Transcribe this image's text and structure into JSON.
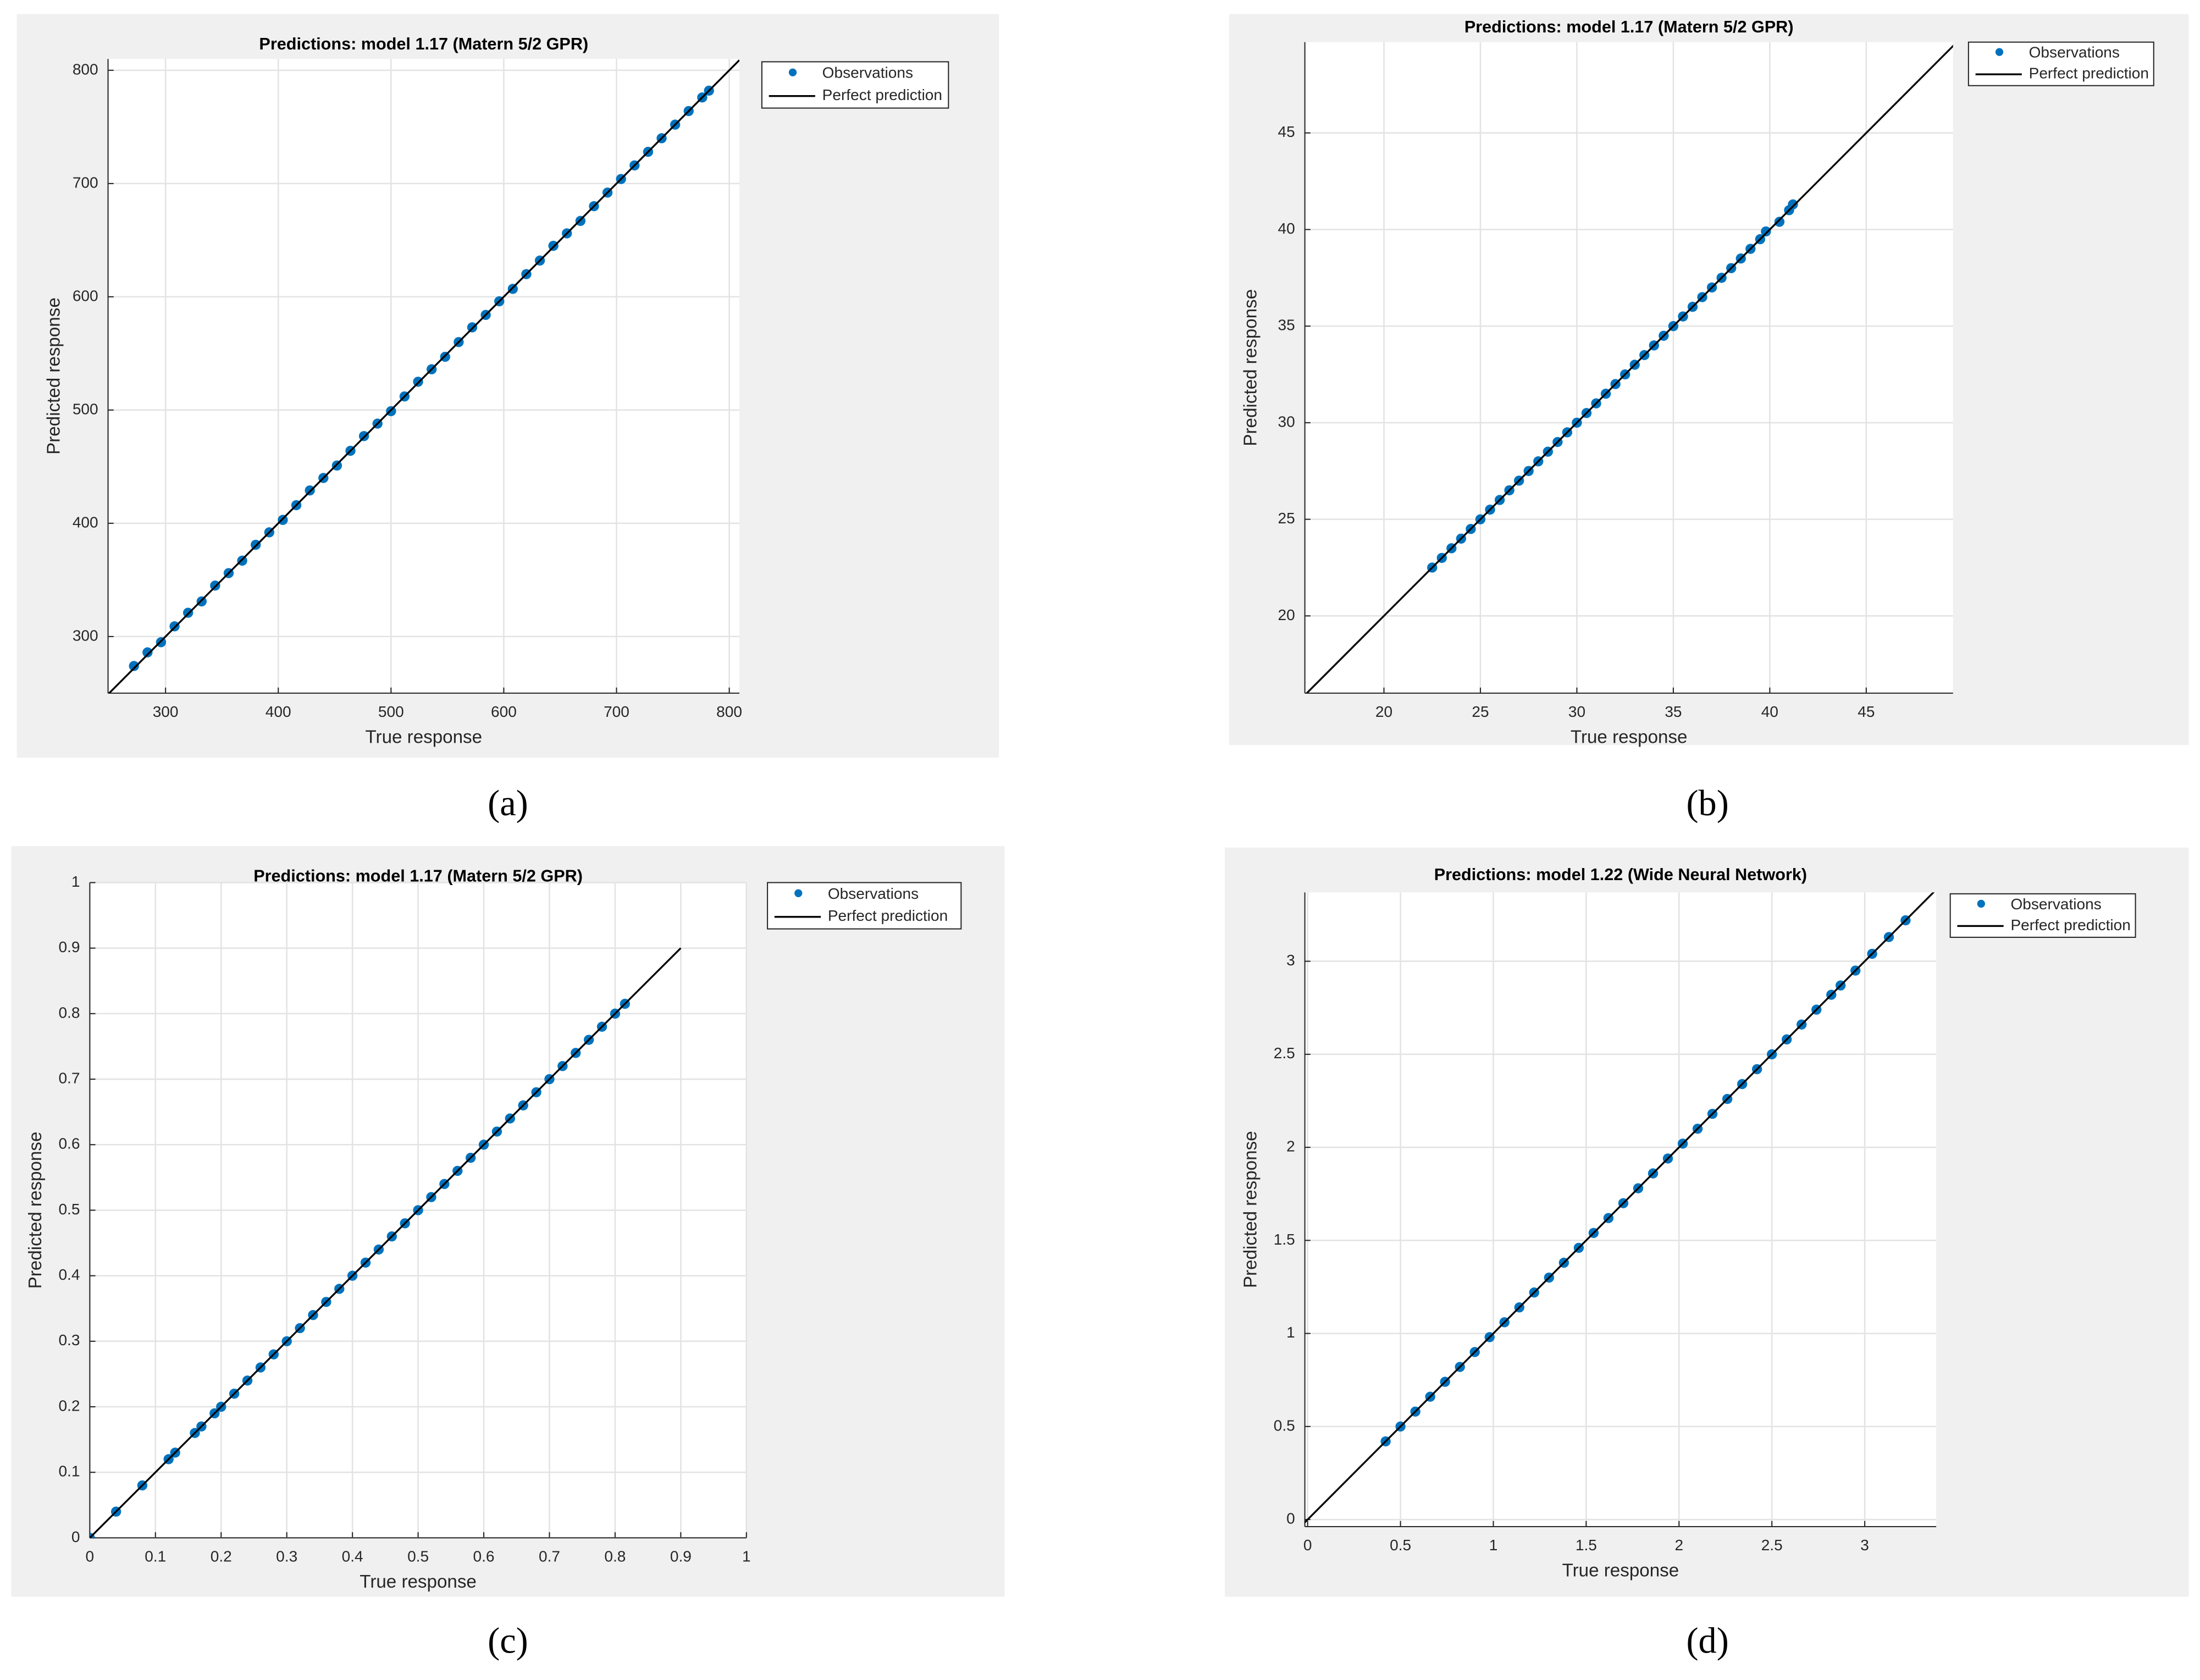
{
  "chart_data": [
    {
      "type": "scatter",
      "title": "Predictions: model 1.17 (Matern 5/2 GPR)",
      "xlabel": "True response",
      "ylabel": "Predicted response",
      "caption": "(a)",
      "xlim": [
        249,
        809
      ],
      "ylim": [
        250,
        810
      ],
      "xticks": [
        300,
        400,
        500,
        600,
        700,
        800
      ],
      "yticks": [
        300,
        400,
        500,
        600,
        700,
        800
      ],
      "grid": true,
      "legend": "outside right",
      "series": [
        {
          "name": "Observations",
          "color": "#0072bd",
          "type": "scatter",
          "x": [
            272,
            284,
            296,
            308,
            320,
            332,
            344,
            356,
            368,
            380,
            392,
            404,
            416,
            428,
            440,
            452,
            464,
            476,
            488,
            500,
            512,
            524,
            536,
            548,
            560,
            572,
            584,
            596,
            608,
            620,
            632,
            644,
            656,
            668,
            680,
            692,
            704,
            716,
            728,
            740,
            752,
            764,
            776,
            782
          ],
          "y": [
            274,
            286,
            295,
            309,
            321,
            331,
            345,
            356,
            367,
            381,
            392,
            403,
            416,
            429,
            440,
            451,
            464,
            477,
            488,
            499,
            512,
            525,
            536,
            547,
            560,
            573,
            584,
            596,
            607,
            620,
            632,
            645,
            656,
            667,
            680,
            692,
            704,
            716,
            728,
            740,
            752,
            764,
            776,
            782
          ]
        },
        {
          "name": "Perfect prediction",
          "color": "#000000",
          "type": "line",
          "x": [
            249,
            809
          ],
          "y": [
            249,
            809
          ]
        }
      ]
    },
    {
      "type": "scatter",
      "title": "Predictions: model 1.17 (Matern 5/2 GPR)",
      "xlabel": "True response",
      "ylabel": "Predicted response",
      "caption": "(b)",
      "xlim": [
        15.9,
        49.5
      ],
      "ylim": [
        16,
        49.7
      ],
      "xticks": [
        20,
        25,
        30,
        35,
        40,
        45
      ],
      "yticks": [
        20,
        25,
        30,
        35,
        40,
        45
      ],
      "grid": true,
      "legend": "outside right",
      "series": [
        {
          "name": "Observations",
          "color": "#0072bd",
          "type": "scatter",
          "x": [
            22.5,
            23,
            23.5,
            24,
            24.5,
            25,
            25.5,
            26,
            26.5,
            27,
            27.5,
            28,
            28.5,
            29,
            29.5,
            30,
            30.5,
            31,
            31.5,
            32,
            32.5,
            33,
            33.5,
            34,
            34.5,
            35,
            35.5,
            36,
            36.5,
            37,
            37.5,
            38,
            38.5,
            39,
            39.5,
            39.8,
            40.5,
            41,
            41.2
          ],
          "y": [
            22.5,
            23,
            23.5,
            24,
            24.5,
            25,
            25.5,
            26,
            26.5,
            27,
            27.5,
            28,
            28.5,
            29,
            29.5,
            30,
            30.5,
            31,
            31.5,
            32,
            32.5,
            33,
            33.5,
            34,
            34.5,
            35,
            35.5,
            36,
            36.5,
            37,
            37.5,
            38,
            38.5,
            39,
            39.5,
            39.9,
            40.4,
            41,
            41.3
          ]
        },
        {
          "name": "Perfect prediction",
          "color": "#000000",
          "type": "line",
          "x": [
            15.9,
            49.7
          ],
          "y": [
            15.9,
            49.7
          ]
        }
      ]
    },
    {
      "type": "scatter",
      "title": "Predictions: model 1.17 (Matern 5/2 GPR)",
      "xlabel": "True response",
      "ylabel": "Predicted response",
      "caption": "(c)",
      "xlim": [
        0,
        1
      ],
      "ylim": [
        0,
        1
      ],
      "xticks": [
        0,
        0.1,
        0.2,
        0.3,
        0.4,
        0.5,
        0.6,
        0.7,
        0.8,
        0.9,
        1
      ],
      "yticks": [
        0,
        0.1,
        0.2,
        0.3,
        0.4,
        0.5,
        0.6,
        0.7,
        0.8,
        0.9,
        1
      ],
      "grid": true,
      "legend": "outside right",
      "series": [
        {
          "name": "Observations",
          "color": "#0072bd",
          "type": "scatter",
          "x": [
            0,
            0.04,
            0.08,
            0.12,
            0.13,
            0.16,
            0.17,
            0.19,
            0.2,
            0.22,
            0.24,
            0.26,
            0.28,
            0.3,
            0.32,
            0.34,
            0.36,
            0.38,
            0.4,
            0.42,
            0.44,
            0.46,
            0.48,
            0.5,
            0.52,
            0.54,
            0.56,
            0.58,
            0.6,
            0.62,
            0.64,
            0.66,
            0.68,
            0.7,
            0.72,
            0.74,
            0.76,
            0.78,
            0.8,
            0.815
          ],
          "y": [
            0,
            0.04,
            0.08,
            0.12,
            0.13,
            0.16,
            0.17,
            0.19,
            0.2,
            0.22,
            0.24,
            0.26,
            0.28,
            0.3,
            0.32,
            0.34,
            0.36,
            0.38,
            0.4,
            0.42,
            0.44,
            0.46,
            0.48,
            0.5,
            0.52,
            0.54,
            0.56,
            0.58,
            0.6,
            0.62,
            0.64,
            0.66,
            0.68,
            0.7,
            0.72,
            0.74,
            0.76,
            0.78,
            0.8,
            0.815
          ]
        },
        {
          "name": "Perfect prediction",
          "color": "#000000",
          "type": "line",
          "x": [
            0,
            0.9
          ],
          "y": [
            0,
            0.9
          ]
        }
      ]
    },
    {
      "type": "scatter",
      "title": "Predictions: model 1.22 (Wide Neural Network)",
      "xlabel": "True response",
      "ylabel": "Predicted response",
      "caption": "(d)",
      "xlim": [
        -0.015,
        3.385
      ],
      "ylim": [
        -0.038,
        3.37
      ],
      "xticks": [
        0,
        0.5,
        1,
        1.5,
        2,
        2.5,
        3
      ],
      "yticks": [
        0,
        0.5,
        1,
        1.5,
        2,
        2.5,
        3
      ],
      "grid": true,
      "legend": "outside right",
      "series": [
        {
          "name": "Observations",
          "color": "#0072bd",
          "type": "scatter",
          "x": [
            0.42,
            0.5,
            0.58,
            0.66,
            0.74,
            0.82,
            0.9,
            0.98,
            1.06,
            1.14,
            1.22,
            1.3,
            1.38,
            1.46,
            1.54,
            1.62,
            1.7,
            1.78,
            1.86,
            1.94,
            2.02,
            2.1,
            2.18,
            2.26,
            2.34,
            2.42,
            2.5,
            2.58,
            2.66,
            2.74,
            2.82,
            2.87,
            2.95,
            3.04,
            3.13,
            3.22
          ],
          "y": [
            0.42,
            0.5,
            0.58,
            0.66,
            0.74,
            0.82,
            0.9,
            0.98,
            1.06,
            1.14,
            1.22,
            1.3,
            1.38,
            1.46,
            1.54,
            1.62,
            1.7,
            1.78,
            1.86,
            1.94,
            2.02,
            2.1,
            2.18,
            2.26,
            2.34,
            2.42,
            2.5,
            2.58,
            2.66,
            2.74,
            2.82,
            2.87,
            2.95,
            3.04,
            3.13,
            3.22
          ]
        },
        {
          "name": "Perfect prediction",
          "color": "#000000",
          "type": "line",
          "x": [
            -0.038,
            3.385
          ],
          "y": [
            -0.038,
            3.385
          ]
        }
      ]
    }
  ]
}
